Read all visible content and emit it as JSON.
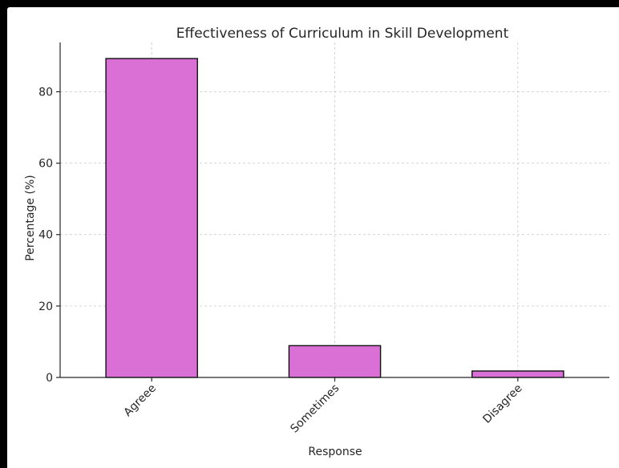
{
  "chart_data": {
    "type": "bar",
    "title": "Effectiveness of Curriculum in Skill Development",
    "xlabel": "Response",
    "ylabel": "Percentage (%)",
    "categories": [
      "Agreee",
      "Sometimes",
      "Disagree"
    ],
    "values": [
      89.3,
      8.9,
      1.8
    ],
    "ylim": [
      0,
      93.8
    ],
    "yticks": [
      0,
      20,
      40,
      60,
      80
    ],
    "grid": true,
    "x_tick_rotation": 45,
    "colors": {
      "bar_fill": "#da70d6",
      "bar_edge": "#111111",
      "frame": "#000000"
    }
  }
}
